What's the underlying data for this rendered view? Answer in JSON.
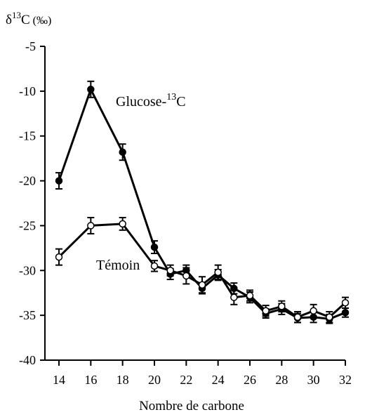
{
  "chart_data": {
    "type": "line",
    "ylabel": {
      "base": "δ",
      "sup": "13",
      "main": "C",
      "unit": " (‰)"
    },
    "xlabel": "Nombre de carbone",
    "xlim": [
      14,
      32
    ],
    "ylim": [
      -40,
      -5
    ],
    "x_ticks": [
      14,
      16,
      18,
      20,
      22,
      24,
      26,
      28,
      30,
      32
    ],
    "y_ticks": [
      -5,
      -10,
      -15,
      -20,
      -25,
      -30,
      -35,
      -40
    ],
    "grid": false,
    "series": [
      {
        "name": "Glucose-13C",
        "marker": "filled-circle",
        "x": [
          14,
          16,
          18,
          20,
          21,
          22,
          23,
          24,
          25,
          26,
          27,
          28,
          29,
          30,
          31,
          32
        ],
        "y": [
          -20.0,
          -9.8,
          -16.8,
          -27.4,
          -30.4,
          -30.0,
          -32.0,
          -30.5,
          -32.0,
          -33.0,
          -34.8,
          -34.3,
          -35.3,
          -35.2,
          -35.4,
          -34.7
        ],
        "err": [
          0.9,
          0.9,
          0.9,
          0.7,
          0.6,
          0.6,
          0.6,
          0.6,
          0.6,
          0.6,
          0.5,
          0.6,
          0.5,
          0.6,
          0.5,
          0.5
        ]
      },
      {
        "name": "Témoin",
        "marker": "open-circle",
        "x": [
          14,
          16,
          18,
          20,
          21,
          22,
          23,
          24,
          25,
          26,
          27,
          28,
          29,
          30,
          31,
          32
        ],
        "y": [
          -28.5,
          -25.0,
          -24.8,
          -29.5,
          -30.0,
          -30.6,
          -31.6,
          -30.2,
          -33.0,
          -32.8,
          -34.5,
          -34.0,
          -35.2,
          -34.5,
          -35.2,
          -33.6
        ],
        "err": [
          0.9,
          0.9,
          0.7,
          0.6,
          0.6,
          0.9,
          0.9,
          0.8,
          0.8,
          0.6,
          0.6,
          0.6,
          0.6,
          0.7,
          0.6,
          0.6
        ]
      }
    ],
    "annotations": [
      {
        "text": "Glucose-",
        "sup": "13",
        "tail": "C",
        "series": "Glucose-13C"
      },
      {
        "text": "Témoin",
        "series": "Témoin"
      }
    ],
    "colors": {
      "line": "#000000",
      "marker_fill_open": "#ffffff",
      "marker_fill_filled": "#000000"
    }
  }
}
